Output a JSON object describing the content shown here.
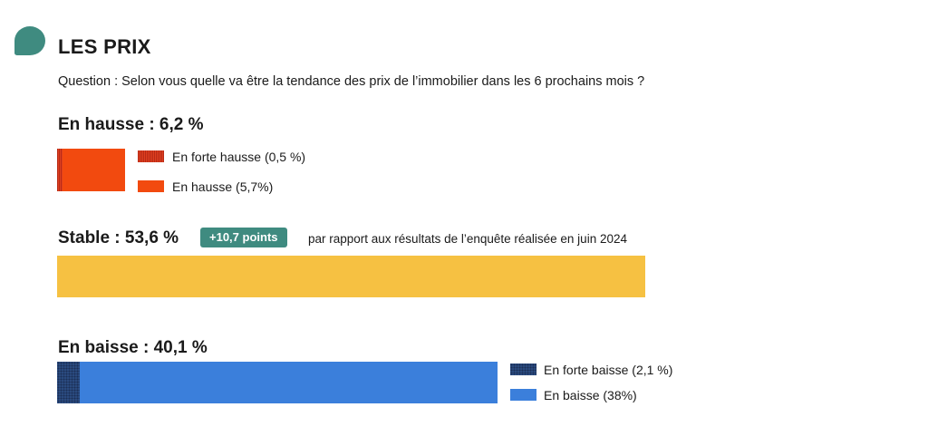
{
  "header": {
    "title": "LES PRIX",
    "question": "Question : Selon vous quelle va être la tendance des prix de l’immobilier dans les 6 prochains mois ?"
  },
  "chart_data": {
    "type": "bar",
    "orientation": "horizontal-stacked",
    "axis_max": 53.6,
    "groups": [
      {
        "heading": "En hausse : 6,2 %",
        "total": 6.2,
        "segments": [
          {
            "legend": "En forte hausse (0,5 %)",
            "value": 0.5,
            "color": "#c8321c",
            "pattern": "hatched-red"
          },
          {
            "legend": "En hausse (5,7%)",
            "value": 5.7,
            "color": "#f24a0f",
            "pattern": ""
          }
        ]
      },
      {
        "heading": "Stable : 53,6 %",
        "total": 53.6,
        "badge": "+10,7 points",
        "note": "par rapport aux résultats de l’enquête réalisée en juin 2024",
        "segments": [
          {
            "legend": "",
            "value": 53.6,
            "color": "#f6c142",
            "pattern": ""
          }
        ]
      },
      {
        "heading": "En baisse : 40,1 %",
        "total": 40.1,
        "segments": [
          {
            "legend": "En forte baisse (2,1 %)",
            "value": 2.1,
            "color": "#2a4a7e",
            "pattern": "hatched-blue"
          },
          {
            "legend": "En baisse (38%)",
            "value": 38,
            "color": "#3b7fdb",
            "pattern": ""
          }
        ]
      }
    ]
  }
}
